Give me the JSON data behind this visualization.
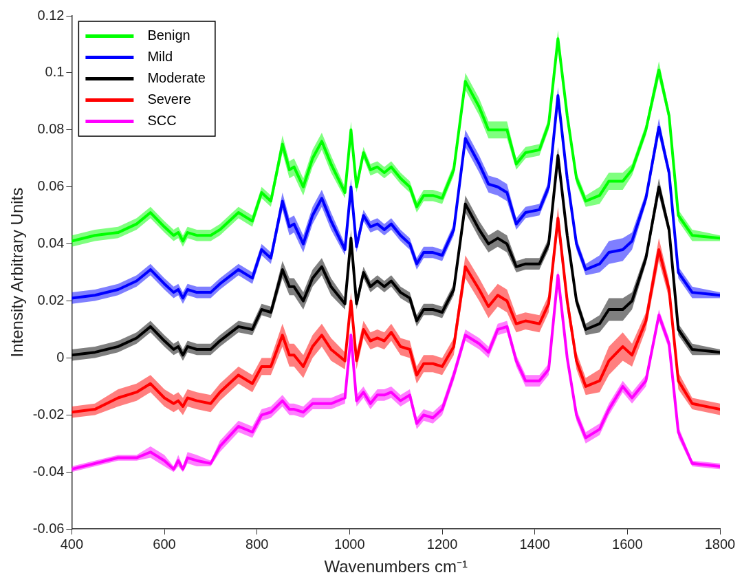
{
  "chart_data": {
    "type": "line",
    "xlabel": "Wavenumbers cm⁻¹",
    "ylabel": "Intensity Arbitrary Units",
    "xlim": [
      400,
      1800
    ],
    "xticks": [
      400,
      600,
      800,
      1000,
      1200,
      1400,
      1600,
      1800
    ],
    "ylim": [
      -0.06,
      0.12
    ],
    "yticks": [
      -0.06,
      -0.04,
      -0.02,
      0,
      0.02,
      0.04,
      0.06,
      0.08,
      0.1,
      0.12
    ],
    "grid": false,
    "legend": "top left",
    "marker": "none",
    "line_style": "solid",
    "x": [
      400,
      450,
      500,
      540,
      570,
      600,
      620,
      630,
      640,
      650,
      670,
      700,
      720,
      760,
      790,
      810,
      830,
      855,
      870,
      880,
      900,
      920,
      940,
      960,
      990,
      1003,
      1015,
      1030,
      1045,
      1060,
      1075,
      1090,
      1110,
      1130,
      1145,
      1160,
      1180,
      1200,
      1225,
      1250,
      1280,
      1300,
      1320,
      1340,
      1360,
      1380,
      1410,
      1430,
      1450,
      1470,
      1490,
      1510,
      1540,
      1560,
      1590,
      1610,
      1640,
      1668,
      1690,
      1710,
      1740,
      1800
    ],
    "series": [
      {
        "name": "Benign",
        "color": "#00ff00",
        "values": [
          0.041,
          0.043,
          0.044,
          0.047,
          0.051,
          0.046,
          0.043,
          0.044,
          0.041,
          0.044,
          0.043,
          0.043,
          0.045,
          0.051,
          0.048,
          0.058,
          0.055,
          0.075,
          0.066,
          0.067,
          0.06,
          0.07,
          0.076,
          0.068,
          0.058,
          0.08,
          0.06,
          0.072,
          0.066,
          0.067,
          0.065,
          0.067,
          0.063,
          0.06,
          0.053,
          0.057,
          0.057,
          0.056,
          0.066,
          0.097,
          0.088,
          0.08,
          0.08,
          0.08,
          0.068,
          0.072,
          0.073,
          0.082,
          0.112,
          0.085,
          0.063,
          0.055,
          0.057,
          0.062,
          0.062,
          0.066,
          0.08,
          0.101,
          0.085,
          0.05,
          0.043,
          0.042
        ],
        "lower": [
          0.039,
          0.041,
          0.042,
          0.045,
          0.049,
          0.044,
          0.041,
          0.042,
          0.039,
          0.042,
          0.041,
          0.041,
          0.043,
          0.049,
          0.046,
          0.056,
          0.053,
          0.072,
          0.063,
          0.064,
          0.057,
          0.067,
          0.073,
          0.065,
          0.056,
          0.077,
          0.058,
          0.07,
          0.064,
          0.065,
          0.063,
          0.065,
          0.061,
          0.058,
          0.051,
          0.055,
          0.055,
          0.054,
          0.064,
          0.094,
          0.085,
          0.077,
          0.077,
          0.077,
          0.066,
          0.07,
          0.071,
          0.08,
          0.109,
          0.083,
          0.061,
          0.053,
          0.054,
          0.059,
          0.059,
          0.064,
          0.078,
          0.098,
          0.083,
          0.048,
          0.041,
          0.041
        ],
        "upper": [
          0.043,
          0.045,
          0.046,
          0.049,
          0.053,
          0.048,
          0.045,
          0.046,
          0.043,
          0.046,
          0.045,
          0.045,
          0.047,
          0.053,
          0.05,
          0.06,
          0.057,
          0.078,
          0.069,
          0.07,
          0.063,
          0.073,
          0.079,
          0.071,
          0.06,
          0.083,
          0.062,
          0.074,
          0.068,
          0.069,
          0.067,
          0.069,
          0.065,
          0.062,
          0.055,
          0.059,
          0.059,
          0.058,
          0.068,
          0.1,
          0.091,
          0.083,
          0.083,
          0.083,
          0.07,
          0.074,
          0.075,
          0.084,
          0.115,
          0.087,
          0.065,
          0.057,
          0.06,
          0.065,
          0.065,
          0.068,
          0.082,
          0.104,
          0.087,
          0.052,
          0.045,
          0.043
        ]
      },
      {
        "name": "Mild",
        "color": "#0000ff",
        "values": [
          0.021,
          0.022,
          0.024,
          0.027,
          0.031,
          0.026,
          0.023,
          0.024,
          0.021,
          0.024,
          0.023,
          0.023,
          0.026,
          0.031,
          0.028,
          0.038,
          0.035,
          0.055,
          0.046,
          0.047,
          0.04,
          0.05,
          0.056,
          0.048,
          0.038,
          0.06,
          0.039,
          0.05,
          0.046,
          0.047,
          0.045,
          0.047,
          0.043,
          0.04,
          0.033,
          0.037,
          0.037,
          0.036,
          0.045,
          0.077,
          0.068,
          0.061,
          0.06,
          0.058,
          0.047,
          0.051,
          0.052,
          0.06,
          0.092,
          0.063,
          0.04,
          0.031,
          0.033,
          0.037,
          0.038,
          0.041,
          0.056,
          0.081,
          0.065,
          0.03,
          0.023,
          0.022
        ],
        "lower": [
          0.019,
          0.02,
          0.022,
          0.025,
          0.029,
          0.024,
          0.021,
          0.022,
          0.019,
          0.022,
          0.021,
          0.021,
          0.024,
          0.029,
          0.026,
          0.036,
          0.033,
          0.052,
          0.043,
          0.044,
          0.037,
          0.047,
          0.053,
          0.045,
          0.036,
          0.057,
          0.037,
          0.048,
          0.044,
          0.045,
          0.043,
          0.045,
          0.041,
          0.038,
          0.031,
          0.035,
          0.035,
          0.034,
          0.043,
          0.074,
          0.065,
          0.058,
          0.057,
          0.055,
          0.045,
          0.049,
          0.05,
          0.058,
          0.089,
          0.061,
          0.038,
          0.029,
          0.03,
          0.033,
          0.034,
          0.038,
          0.054,
          0.078,
          0.063,
          0.028,
          0.021,
          0.021
        ],
        "upper": [
          0.023,
          0.024,
          0.026,
          0.029,
          0.033,
          0.028,
          0.025,
          0.026,
          0.023,
          0.026,
          0.025,
          0.025,
          0.028,
          0.033,
          0.03,
          0.04,
          0.037,
          0.058,
          0.049,
          0.05,
          0.043,
          0.053,
          0.059,
          0.051,
          0.04,
          0.063,
          0.041,
          0.052,
          0.048,
          0.049,
          0.047,
          0.049,
          0.045,
          0.042,
          0.035,
          0.039,
          0.039,
          0.038,
          0.047,
          0.08,
          0.071,
          0.064,
          0.063,
          0.061,
          0.049,
          0.053,
          0.054,
          0.062,
          0.095,
          0.065,
          0.042,
          0.033,
          0.036,
          0.041,
          0.042,
          0.044,
          0.058,
          0.084,
          0.067,
          0.032,
          0.025,
          0.023
        ]
      },
      {
        "name": "Moderate",
        "color": "#000000",
        "values": [
          0.001,
          0.002,
          0.004,
          0.007,
          0.011,
          0.006,
          0.003,
          0.004,
          0.001,
          0.004,
          0.003,
          0.003,
          0.006,
          0.011,
          0.01,
          0.017,
          0.016,
          0.031,
          0.025,
          0.025,
          0.02,
          0.028,
          0.032,
          0.025,
          0.019,
          0.042,
          0.019,
          0.03,
          0.025,
          0.027,
          0.025,
          0.027,
          0.023,
          0.021,
          0.013,
          0.017,
          0.017,
          0.016,
          0.024,
          0.054,
          0.045,
          0.04,
          0.042,
          0.04,
          0.032,
          0.033,
          0.033,
          0.04,
          0.071,
          0.043,
          0.02,
          0.01,
          0.012,
          0.017,
          0.017,
          0.02,
          0.035,
          0.06,
          0.045,
          0.01,
          0.003,
          0.002
        ],
        "lower": [
          -0.001,
          0,
          0.002,
          0.005,
          0.009,
          0.004,
          0.001,
          0.002,
          -0.001,
          0.002,
          0.001,
          0.001,
          0.004,
          0.009,
          0.008,
          0.015,
          0.014,
          0.028,
          0.022,
          0.022,
          0.017,
          0.025,
          0.029,
          0.022,
          0.017,
          0.039,
          0.017,
          0.028,
          0.023,
          0.025,
          0.023,
          0.025,
          0.021,
          0.019,
          0.011,
          0.015,
          0.015,
          0.014,
          0.022,
          0.051,
          0.042,
          0.037,
          0.039,
          0.037,
          0.03,
          0.031,
          0.031,
          0.038,
          0.068,
          0.041,
          0.018,
          0.008,
          0.009,
          0.013,
          0.013,
          0.017,
          0.033,
          0.057,
          0.043,
          0.008,
          0.001,
          0.001
        ],
        "upper": [
          0.003,
          0.004,
          0.006,
          0.009,
          0.013,
          0.008,
          0.005,
          0.006,
          0.003,
          0.006,
          0.005,
          0.005,
          0.008,
          0.013,
          0.012,
          0.019,
          0.018,
          0.034,
          0.028,
          0.028,
          0.023,
          0.031,
          0.035,
          0.028,
          0.021,
          0.045,
          0.021,
          0.032,
          0.027,
          0.029,
          0.027,
          0.029,
          0.025,
          0.023,
          0.015,
          0.019,
          0.019,
          0.018,
          0.026,
          0.057,
          0.048,
          0.043,
          0.045,
          0.043,
          0.034,
          0.035,
          0.035,
          0.042,
          0.074,
          0.045,
          0.022,
          0.012,
          0.015,
          0.021,
          0.021,
          0.023,
          0.037,
          0.063,
          0.047,
          0.012,
          0.005,
          0.003
        ]
      },
      {
        "name": "Severe",
        "color": "#ff0000",
        "values": [
          -0.019,
          -0.018,
          -0.014,
          -0.012,
          -0.009,
          -0.014,
          -0.016,
          -0.015,
          -0.017,
          -0.014,
          -0.015,
          -0.016,
          -0.012,
          -0.006,
          -0.009,
          -0.003,
          -0.003,
          0.008,
          0.001,
          0.001,
          -0.003,
          0.004,
          0.008,
          0.003,
          -0.001,
          0.02,
          -0.001,
          0.01,
          0.006,
          0.007,
          0.006,
          0.009,
          0.004,
          0.003,
          -0.006,
          -0.002,
          -0.002,
          -0.003,
          0.004,
          0.032,
          0.024,
          0.018,
          0.022,
          0.02,
          0.012,
          0.013,
          0.012,
          0.019,
          0.049,
          0.02,
          -0.001,
          -0.01,
          -0.008,
          -0.001,
          0.004,
          0.001,
          0.013,
          0.038,
          0.024,
          -0.008,
          -0.016,
          -0.018
        ],
        "lower": [
          -0.021,
          -0.02,
          -0.017,
          -0.015,
          -0.012,
          -0.017,
          -0.019,
          -0.018,
          -0.02,
          -0.017,
          -0.018,
          -0.019,
          -0.015,
          -0.009,
          -0.012,
          -0.006,
          -0.006,
          0.004,
          -0.003,
          -0.003,
          -0.007,
          0,
          0.004,
          -0.001,
          -0.004,
          0.017,
          -0.004,
          0.007,
          0.003,
          0.004,
          0.003,
          0.006,
          0.001,
          0,
          -0.009,
          -0.005,
          -0.005,
          -0.006,
          0.001,
          0.028,
          0.02,
          0.014,
          0.018,
          0.016,
          0.009,
          0.01,
          0.009,
          0.016,
          0.045,
          0.017,
          -0.004,
          -0.013,
          -0.012,
          -0.006,
          -0.001,
          -0.003,
          0.01,
          0.034,
          0.021,
          -0.011,
          -0.018,
          -0.02
        ],
        "upper": [
          -0.017,
          -0.016,
          -0.011,
          -0.009,
          -0.006,
          -0.011,
          -0.013,
          -0.012,
          -0.014,
          -0.011,
          -0.012,
          -0.013,
          -0.009,
          -0.003,
          -0.006,
          0,
          0,
          0.012,
          0.005,
          0.005,
          0.001,
          0.008,
          0.012,
          0.007,
          0.002,
          0.023,
          0.002,
          0.013,
          0.009,
          0.01,
          0.009,
          0.012,
          0.007,
          0.006,
          -0.003,
          0.001,
          0.001,
          0,
          0.007,
          0.036,
          0.028,
          0.022,
          0.026,
          0.024,
          0.015,
          0.016,
          0.015,
          0.022,
          0.053,
          0.023,
          0.002,
          -0.007,
          -0.004,
          0.004,
          0.009,
          0.005,
          0.016,
          0.042,
          0.027,
          -0.005,
          -0.014,
          -0.016
        ]
      },
      {
        "name": "SCC",
        "color": "#ff00ff",
        "values": [
          -0.039,
          -0.037,
          -0.035,
          -0.035,
          -0.033,
          -0.036,
          -0.039,
          -0.036,
          -0.039,
          -0.035,
          -0.036,
          -0.037,
          -0.031,
          -0.024,
          -0.026,
          -0.02,
          -0.019,
          -0.015,
          -0.018,
          -0.018,
          -0.019,
          -0.016,
          -0.016,
          -0.016,
          -0.014,
          0.008,
          -0.015,
          -0.012,
          -0.016,
          -0.013,
          -0.013,
          -0.012,
          -0.015,
          -0.013,
          -0.023,
          -0.02,
          -0.021,
          -0.018,
          -0.006,
          0.008,
          0.005,
          0.002,
          0.01,
          0.011,
          -0.001,
          -0.008,
          -0.008,
          -0.004,
          0.029,
          0,
          -0.02,
          -0.028,
          -0.025,
          -0.018,
          -0.01,
          -0.014,
          -0.008,
          0.015,
          0.005,
          -0.026,
          -0.037,
          -0.038
        ],
        "lower": [
          -0.04,
          -0.038,
          -0.036,
          -0.036,
          -0.035,
          -0.038,
          -0.04,
          -0.038,
          -0.04,
          -0.037,
          -0.038,
          -0.038,
          -0.033,
          -0.026,
          -0.028,
          -0.022,
          -0.021,
          -0.017,
          -0.02,
          -0.02,
          -0.021,
          -0.018,
          -0.018,
          -0.018,
          -0.016,
          0.006,
          -0.017,
          -0.014,
          -0.018,
          -0.015,
          -0.015,
          -0.014,
          -0.017,
          -0.015,
          -0.025,
          -0.022,
          -0.023,
          -0.02,
          -0.008,
          0.006,
          0.003,
          0,
          0.008,
          0.009,
          -0.003,
          -0.01,
          -0.01,
          -0.006,
          0.027,
          -0.002,
          -0.022,
          -0.03,
          -0.027,
          -0.02,
          -0.012,
          -0.016,
          -0.01,
          0.013,
          0.003,
          -0.028,
          -0.038,
          -0.039
        ],
        "upper": [
          -0.038,
          -0.036,
          -0.034,
          -0.034,
          -0.031,
          -0.034,
          -0.038,
          -0.034,
          -0.038,
          -0.033,
          -0.034,
          -0.036,
          -0.029,
          -0.022,
          -0.024,
          -0.018,
          -0.017,
          -0.013,
          -0.016,
          -0.016,
          -0.017,
          -0.014,
          -0.014,
          -0.014,
          -0.012,
          0.01,
          -0.013,
          -0.01,
          -0.014,
          -0.011,
          -0.011,
          -0.01,
          -0.013,
          -0.011,
          -0.021,
          -0.018,
          -0.019,
          -0.016,
          -0.004,
          0.01,
          0.007,
          0.004,
          0.012,
          0.013,
          0.001,
          -0.006,
          -0.006,
          -0.002,
          0.031,
          0.002,
          -0.018,
          -0.026,
          -0.023,
          -0.016,
          -0.008,
          -0.012,
          -0.006,
          0.017,
          0.007,
          -0.024,
          -0.036,
          -0.037
        ]
      }
    ]
  }
}
